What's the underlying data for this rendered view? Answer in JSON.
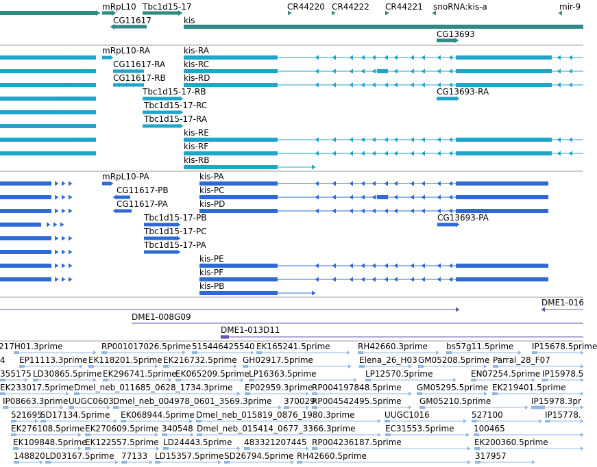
{
  "colors": {
    "gene": "#2f8a84",
    "mrna": "#1fa5c9",
    "protein": "#2e6ad6",
    "bac": "#6b4fae",
    "est": "#8fb7e4",
    "divider": "#9a9a9a",
    "label": "#000000"
  },
  "tracks": {
    "genes": [
      {
        "label": "mRpL10",
        "dir": "right"
      },
      {
        "label": "Tbc1d15-17",
        "dir": "right"
      },
      {
        "label": "CG11617",
        "dir": "left"
      },
      {
        "label": "kis",
        "dir": "right"
      },
      {
        "label": "CR44220",
        "dir": "right"
      },
      {
        "label": "CR44222",
        "dir": "right"
      },
      {
        "label": "CR44221",
        "dir": "right"
      },
      {
        "label": "snoRNA:kis-a",
        "dir": "left"
      },
      {
        "label": "mir-9",
        "dir": "left"
      },
      {
        "label": "CG13693",
        "dir": "right"
      }
    ],
    "transcripts": [
      {
        "label": "mRpL10-RA"
      },
      {
        "label": "CG11617-RA"
      },
      {
        "label": "CG11617-RB"
      },
      {
        "label": "Tbc1d15-17-RB"
      },
      {
        "label": "Tbc1d15-17-RC"
      },
      {
        "label": "Tbc1d15-17-RA"
      },
      {
        "label": "kis-RA"
      },
      {
        "label": "kis-RC"
      },
      {
        "label": "kis-RD"
      },
      {
        "label": "kis-RE"
      },
      {
        "label": "kis-RF"
      },
      {
        "label": "kis-RB"
      },
      {
        "label": "CG13693-RA"
      }
    ],
    "proteins": [
      {
        "label": "mRpL10-PA"
      },
      {
        "label": "CG11617-PB"
      },
      {
        "label": "CG11617-PA"
      },
      {
        "label": "Tbc1d15-17-PB"
      },
      {
        "label": "Tbc1d15-17-PC"
      },
      {
        "label": "Tbc1d15-17-PA"
      },
      {
        "label": "kis-PA"
      },
      {
        "label": "kis-PC"
      },
      {
        "label": "kis-PD"
      },
      {
        "label": "kis-PE"
      },
      {
        "label": "kis-PF"
      },
      {
        "label": "kis-PB"
      },
      {
        "label": "CG13693-PA"
      }
    ],
    "bacs": [
      {
        "label": "DME1-016"
      },
      {
        "label": "DME1-008G09"
      },
      {
        "label": "DME1-013D11"
      }
    ],
    "ests": [
      "217H01.3prime",
      "RP001017026.5prime",
      "515446425540",
      "EK165241.5prime",
      "RH42660.3prime",
      "bs57g11.5prime",
      "IP15678.5prime",
      "4",
      "EP11113.3prime",
      "EK118201.5prime",
      "EK216732.5prime",
      "GH02917.5prime",
      "Elena_26_H03",
      "GM05208.5prime",
      "Parral_28_F07",
      "355175",
      "LD30865.5prime",
      "EK296741.5prime",
      "EK065209.5prime",
      "LP16363.5prime",
      "LP12570.5prime",
      "EN07254.5prime",
      "IP15978.5",
      "EK233017.5prime",
      "Dmel_neb_011685_0628_1734.3prime",
      "EP02959.3prime",
      "RP004197848.5prime",
      "GM05295.5prime",
      "EK219401.5prime",
      "IP08663.3prime",
      "UUGC0603",
      "Dmel_neb_004978_0601_3569.3prime",
      "370029",
      "RP004542495.5prime",
      "GM05210.5prime",
      "IP15978.3pr",
      "521695",
      "SD17134.5prime",
      "EK068944.5prime",
      "Dmel_neb_015819_0876_1980.3prime",
      "UUGC1016",
      "527100",
      "IP15778.",
      "EK276108.5prime",
      "EK270609.5prime",
      "340548",
      "Dmel_neb_015414_0677_3366.3prime",
      "EC31553.5prime",
      "100465",
      "EK109848.5prime",
      "EK122557.5prime",
      "LD24443.5prime",
      "483321207445",
      "RP004236187.5prime",
      "EK200360.5prime",
      "148820",
      "LD03167.5prime",
      "77133",
      "LD15357.5prime",
      "SD26794.5prime",
      "RH42660.5prime",
      "317957"
    ]
  }
}
